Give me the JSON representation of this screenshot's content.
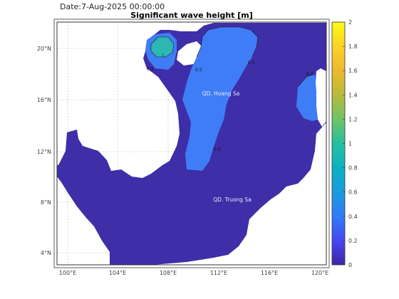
{
  "header": {
    "date_text": "Date:7-Aug-2025 00:00:00",
    "title": "Significant wave height [m]"
  },
  "map": {
    "lon_ticks": [
      "100°E",
      "104°E",
      "108°E",
      "112°E",
      "116°E",
      "120°E"
    ],
    "lat_ticks": [
      "20°N",
      "16°N",
      "12°N",
      "8°N",
      "4°N"
    ],
    "labels": {
      "hoang_sa": "QD. Hoang Sa",
      "truong_sa": "QD. Truong Sa"
    },
    "contour_labels": [
      "1",
      "0.5",
      "0.5",
      "0.5",
      "0.5",
      "0.5"
    ],
    "colors": {
      "sea_base": "#3e2ea8",
      "wave_04": "#3f7df6",
      "wave_05": "#3a96f2",
      "wave_1": "#2cb7b3",
      "land": "#ffffff",
      "grid": "#c8c8c8"
    }
  },
  "colorbar": {
    "ticks": [
      "2",
      "1.8",
      "1.6",
      "1.4",
      "1.2",
      "1",
      "0.8",
      "0.6",
      "0.4",
      "0.2",
      "0"
    ],
    "colors": [
      "#3e26a8",
      "#4748f2",
      "#2f7cf7",
      "#1a9bdd",
      "#0ab2c1",
      "#25c09e",
      "#71c265",
      "#b6bc3c",
      "#edb92e",
      "#fbd226",
      "#f9fb15"
    ]
  }
}
